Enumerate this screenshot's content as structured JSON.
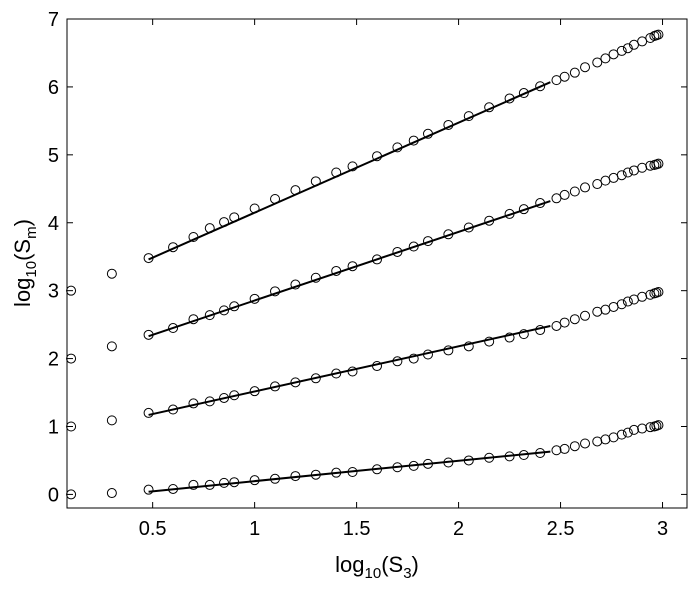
{
  "chart_data": {
    "type": "scatter",
    "title": "",
    "xlabel": {
      "base": "log",
      "sub": "10",
      "open": "(S",
      "sub2": "3",
      "close": ")"
    },
    "ylabel": {
      "base": "log",
      "sub": "10",
      "open": "(S",
      "sub2": "m",
      "close": ")"
    },
    "xlim": [
      0.08,
      3.12
    ],
    "ylim": [
      -0.2,
      7.0
    ],
    "grid": false,
    "legend": "none",
    "x_ticks": [
      0.5,
      1,
      1.5,
      2,
      2.5,
      3
    ],
    "x_tick_labels": [
      "0.5",
      "1",
      "1.5",
      "2",
      "2.5",
      "3"
    ],
    "y_ticks": [
      0,
      1,
      2,
      3,
      4,
      5,
      6,
      7
    ],
    "y_tick_labels": [
      "0",
      "1",
      "2",
      "3",
      "4",
      "5",
      "6",
      "7"
    ],
    "x": [
      0.1,
      0.3,
      0.48,
      0.6,
      0.7,
      0.78,
      0.85,
      0.9,
      1.0,
      1.1,
      1.2,
      1.3,
      1.4,
      1.48,
      1.6,
      1.7,
      1.78,
      1.85,
      1.95,
      2.05,
      2.15,
      2.25,
      2.32,
      2.4,
      2.48,
      2.52,
      2.57,
      2.62,
      2.68,
      2.72,
      2.76,
      2.8,
      2.83,
      2.86,
      2.9,
      2.94,
      2.96,
      2.97,
      2.98
    ],
    "series": [
      {
        "values": [
          0.0,
          0.02,
          0.07,
          0.08,
          0.14,
          0.14,
          0.17,
          0.18,
          0.21,
          0.23,
          0.27,
          0.29,
          0.32,
          0.33,
          0.37,
          0.4,
          0.42,
          0.45,
          0.47,
          0.5,
          0.54,
          0.56,
          0.58,
          0.61,
          0.65,
          0.67,
          0.71,
          0.75,
          0.78,
          0.81,
          0.84,
          0.88,
          0.91,
          0.95,
          0.97,
          0.99,
          1.0,
          1.01,
          1.02
        ],
        "fit": {
          "x": [
            0.48,
            2.45
          ],
          "y": [
            0.04,
            0.63
          ]
        }
      },
      {
        "values": [
          1.0,
          1.09,
          1.2,
          1.25,
          1.34,
          1.37,
          1.42,
          1.46,
          1.52,
          1.59,
          1.65,
          1.71,
          1.78,
          1.81,
          1.89,
          1.96,
          2.0,
          2.06,
          2.12,
          2.18,
          2.25,
          2.31,
          2.36,
          2.42,
          2.48,
          2.53,
          2.58,
          2.63,
          2.69,
          2.72,
          2.76,
          2.8,
          2.84,
          2.87,
          2.91,
          2.94,
          2.96,
          2.97,
          2.98
        ],
        "fit": {
          "x": [
            0.48,
            2.45
          ],
          "y": [
            1.17,
            2.48
          ]
        }
      },
      {
        "values": [
          2.0,
          2.18,
          2.35,
          2.45,
          2.58,
          2.64,
          2.71,
          2.77,
          2.88,
          2.99,
          3.09,
          3.19,
          3.29,
          3.36,
          3.46,
          3.57,
          3.65,
          3.73,
          3.83,
          3.93,
          4.03,
          4.13,
          4.2,
          4.29,
          4.36,
          4.41,
          4.46,
          4.52,
          4.57,
          4.62,
          4.66,
          4.7,
          4.74,
          4.77,
          4.81,
          4.84,
          4.85,
          4.86,
          4.87
        ],
        "fit": {
          "x": [
            0.48,
            2.45
          ],
          "y": [
            2.33,
            4.32
          ]
        }
      },
      {
        "values": [
          3.0,
          3.25,
          3.48,
          3.64,
          3.79,
          3.92,
          4.01,
          4.08,
          4.21,
          4.35,
          4.48,
          4.61,
          4.74,
          4.83,
          4.98,
          5.11,
          5.21,
          5.31,
          5.44,
          5.57,
          5.7,
          5.83,
          5.91,
          6.01,
          6.1,
          6.15,
          6.21,
          6.29,
          6.36,
          6.42,
          6.48,
          6.53,
          6.57,
          6.62,
          6.67,
          6.72,
          6.75,
          6.76,
          6.77
        ],
        "fit": {
          "x": [
            0.48,
            2.45
          ],
          "y": [
            3.46,
            6.07
          ]
        }
      }
    ]
  }
}
